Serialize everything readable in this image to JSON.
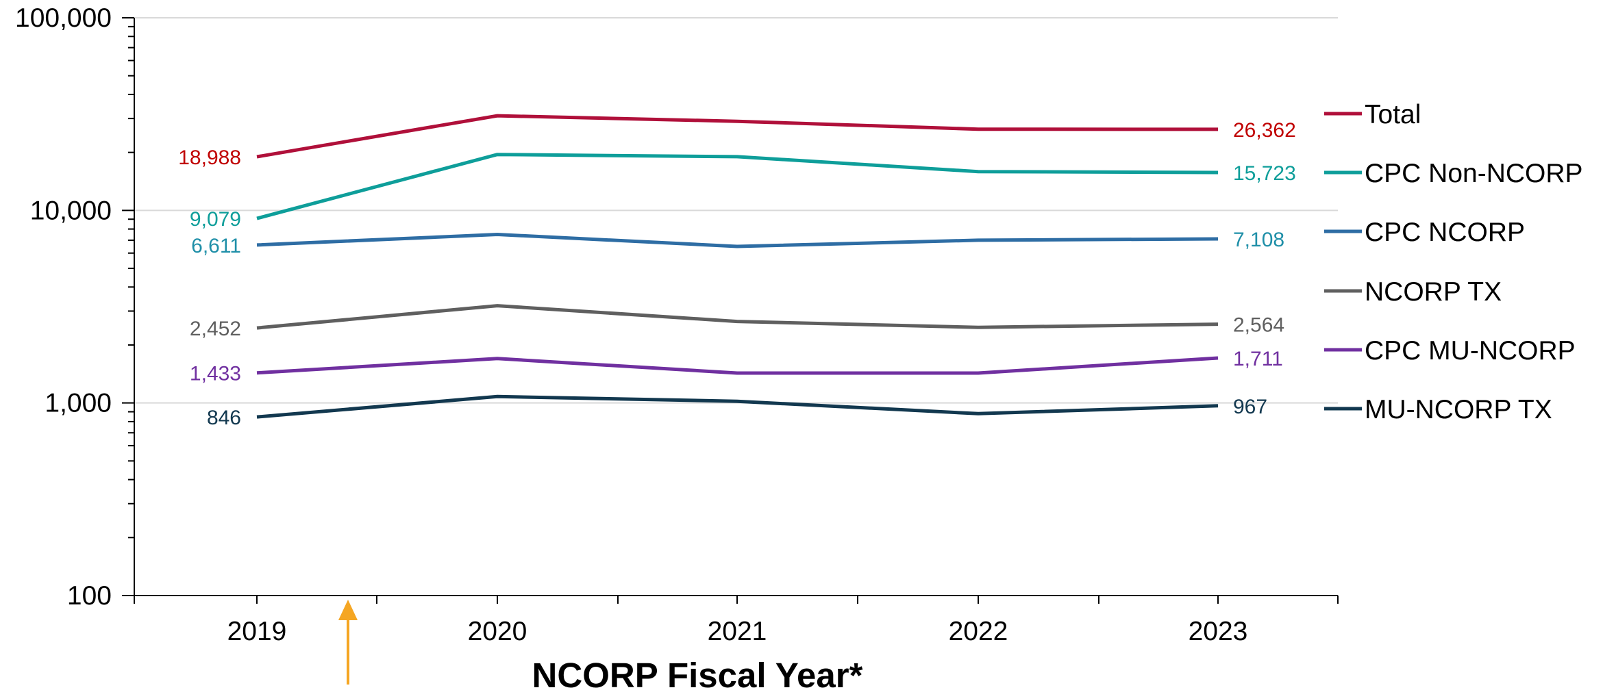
{
  "chart_data": {
    "type": "line",
    "title": "",
    "xlabel": "NCORP Fiscal Year*",
    "ylabel": "",
    "yscale": "log",
    "ylim": [
      100,
      100000
    ],
    "y_ticks": [
      "100",
      "1,000",
      "10,000",
      "100,000"
    ],
    "x": [
      "2019",
      "2020",
      "2021",
      "2022",
      "2023"
    ],
    "grid": "horizontal major gridlines",
    "legend_position": "right",
    "annotation": "orange upward arrow below x-axis between 2019 and 2020",
    "annotation_color": "#F5A623",
    "series": [
      {
        "name": "Total",
        "color": "#B0103A",
        "values": [
          18988,
          31000,
          29000,
          26400,
          26362
        ],
        "start_label": "18,988",
        "end_label": "26,362"
      },
      {
        "name": "CPC Non-NCORP",
        "color": "#0E9E9A",
        "values": [
          9079,
          19500,
          19000,
          15900,
          15723
        ],
        "start_label": "9,079",
        "end_label": "15,723"
      },
      {
        "name": "CPC NCORP",
        "color": "#2E6DA4",
        "values": [
          6611,
          7500,
          6500,
          7000,
          7108
        ],
        "start_label": "6,611",
        "end_label": "7,108"
      },
      {
        "name": "NCORP TX",
        "color": "#5F5F5F",
        "values": [
          2452,
          3200,
          2650,
          2470,
          2564
        ],
        "start_label": "2,452",
        "end_label": "2,564"
      },
      {
        "name": "CPC MU-NCORP",
        "color": "#7030A0",
        "values": [
          1433,
          1700,
          1430,
          1430,
          1711
        ],
        "start_label": "1,433",
        "end_label": "1,711"
      },
      {
        "name": "MU-NCORP TX",
        "color": "#12384F",
        "values": [
          846,
          1080,
          1020,
          880,
          967
        ],
        "start_label": "846",
        "end_label": "967"
      }
    ]
  },
  "label_colors": {
    "Total": "#C00000",
    "CPC Non-NCORP": "#0E9E9A",
    "CPC NCORP": "#1F8FA8",
    "NCORP TX": "#5F5F5F",
    "CPC MU-NCORP": "#7030A0",
    "MU-NCORP TX": "#12384F"
  }
}
